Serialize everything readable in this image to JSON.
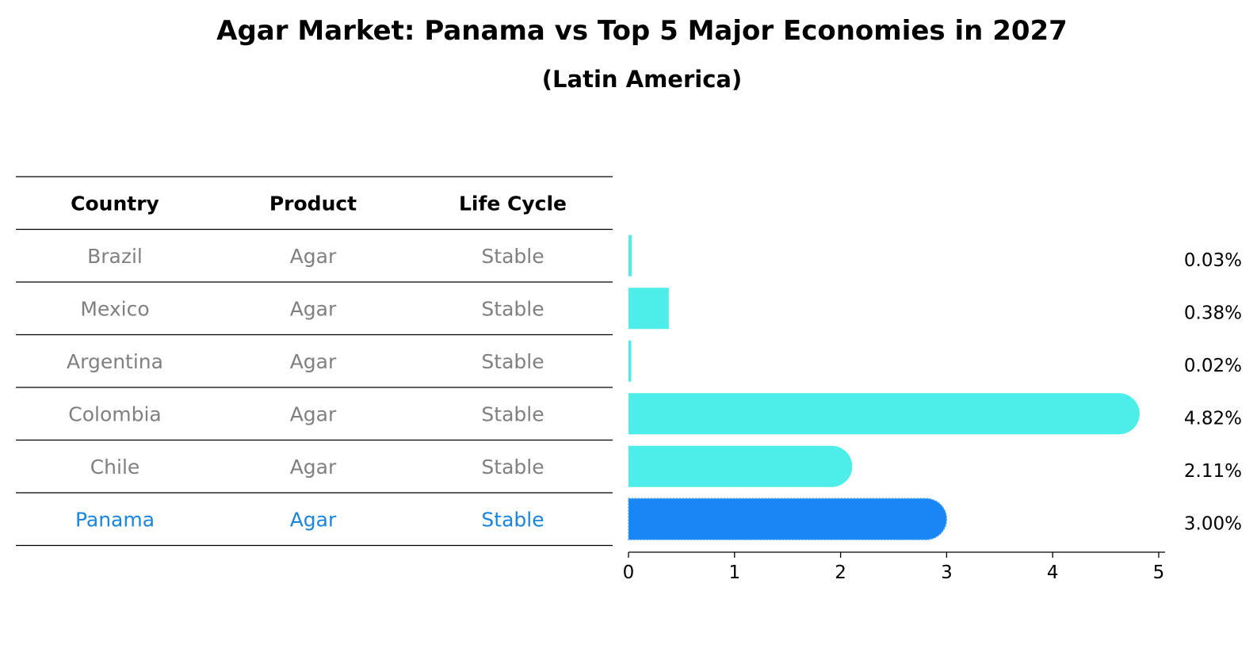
{
  "chart_data": {
    "type": "bar",
    "orientation": "horizontal",
    "title": "Agar Market: Panama vs Top 5 Major Economies in 2027",
    "subtitle": "(Latin America)",
    "table": {
      "columns": [
        "Country",
        "Product",
        "Life Cycle"
      ],
      "rows": [
        [
          "Brazil",
          "Agar",
          "Stable"
        ],
        [
          "Mexico",
          "Agar",
          "Stable"
        ],
        [
          "Argentina",
          "Agar",
          "Stable"
        ],
        [
          "Colombia",
          "Agar",
          "Stable"
        ],
        [
          "Chile",
          "Agar",
          "Stable"
        ],
        [
          "Panama",
          "Agar",
          "Stable"
        ]
      ]
    },
    "categories": [
      "Brazil",
      "Mexico",
      "Argentina",
      "Colombia",
      "Chile",
      "Panama"
    ],
    "values": [
      0.03,
      0.38,
      0.02,
      4.82,
      2.11,
      3.0
    ],
    "value_labels": [
      "0.03%",
      "0.38%",
      "0.02%",
      "4.82%",
      "2.11%",
      "3.00%"
    ],
    "highlight": "Panama",
    "xlim": [
      0,
      5
    ],
    "xticks": [
      "0",
      "1",
      "2",
      "3",
      "4",
      "5"
    ],
    "colors": {
      "bar": "#4deeea",
      "highlight_bar": "#1a85f5",
      "row_text": "#808080",
      "highlight_text": "#1a85dc"
    }
  }
}
